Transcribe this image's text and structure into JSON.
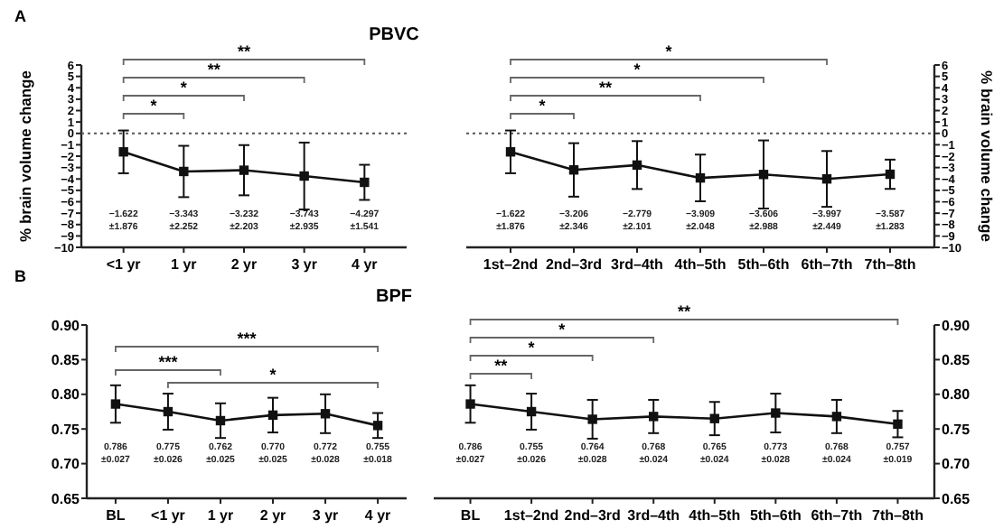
{
  "chart_data": [
    {
      "type": "line",
      "title": "PBVC",
      "ylabel": "% brain volume change",
      "categories": [
        "<1 yr",
        "1 yr",
        "2 yr",
        "3 yr",
        "4 yr"
      ],
      "ylim": [
        -10,
        6
      ],
      "yticks": [
        -10,
        -9,
        -8,
        -7,
        -6,
        -5,
        -4,
        -3,
        -2,
        -1,
        0,
        1,
        2,
        3,
        4,
        5,
        6
      ],
      "marker": "square",
      "line_style": "solid",
      "ref_lines": [
        {
          "axis": "y",
          "value": 0,
          "line_style": "dotted",
          "color": "#555555"
        }
      ],
      "series": [
        {
          "color": "#111111",
          "values": [
            -1.622,
            -3.343,
            -3.232,
            -3.743,
            -4.297
          ],
          "errors": [
            1.876,
            2.252,
            2.203,
            2.935,
            1.541
          ]
        }
      ],
      "annotations": [
        "A",
        "*",
        "*",
        "**",
        "**",
        "−1.622 ±1.876",
        "−3.343 ±2.252",
        "−3.232 ±2.203",
        "−3.743 ±2.935",
        "−4.297 ±1.541"
      ]
    },
    {
      "type": "line",
      "y2label": "% brain volume change",
      "categories": [
        "1st–2nd",
        "2nd–3rd",
        "3rd–4th",
        "4th–5th",
        "5th–6th",
        "6th–7th",
        "7th–8th"
      ],
      "y2lim": [
        -10,
        6
      ],
      "y2ticks": [
        -10,
        -9,
        -8,
        -7,
        -6,
        -5,
        -4,
        -3,
        -2,
        -1,
        0,
        1,
        2,
        3,
        4,
        5,
        6
      ],
      "marker": "square",
      "line_style": "solid",
      "ref_lines": [
        {
          "axis": "y2",
          "value": 0,
          "line_style": "dotted",
          "color": "#555555"
        }
      ],
      "series": [
        {
          "axis": "y2",
          "color": "#111111",
          "values": [
            -1.622,
            -3.206,
            -2.779,
            -3.909,
            -3.606,
            -3.997,
            -3.587
          ],
          "errors": [
            1.876,
            2.346,
            2.101,
            2.048,
            2.988,
            2.449,
            1.283
          ]
        }
      ],
      "annotations": [
        "*",
        "**",
        "*",
        "*",
        "−1.622 ±1.876",
        "−3.206 ±2.346",
        "−2.779 ±2.101",
        "−3.909 ±2.048",
        "−3.606 ±2.988",
        "−3.997 ±2.449",
        "−3.587 ±1.283"
      ]
    },
    {
      "type": "line",
      "title": "BPF",
      "categories": [
        "BL",
        "<1 yr",
        "1 yr",
        "2 yr",
        "3 yr",
        "4 yr"
      ],
      "ylim": [
        0.65,
        0.9
      ],
      "yticks": [
        {
          "value": 0.65,
          "label": "0.65"
        },
        {
          "value": 0.7,
          "label": "0.70"
        },
        {
          "value": 0.75,
          "label": "0.75"
        },
        {
          "value": 0.8,
          "label": "0.80"
        },
        {
          "value": 0.85,
          "label": "0.85"
        },
        {
          "value": 0.9,
          "label": "0.90"
        }
      ],
      "marker": "square",
      "line_style": "solid",
      "series": [
        {
          "color": "#111111",
          "values": [
            0.786,
            0.775,
            0.762,
            0.77,
            0.772,
            0.755
          ],
          "errors": [
            0.027,
            0.026,
            0.025,
            0.025,
            0.028,
            0.018
          ]
        }
      ],
      "annotations": [
        "B",
        "***",
        "*",
        "***",
        "0.786 ±0.027",
        "0.775 ±0.026",
        "0.762 ±0.025",
        "0.770 ±0.025",
        "0.772 ±0.028",
        "0.755 ±0.018"
      ]
    },
    {
      "type": "line",
      "categories": [
        "BL",
        "1st–2nd",
        "2nd–3rd",
        "3rd–4th",
        "4th–5th",
        "5th–6th",
        "6th–7th",
        "7th–8th"
      ],
      "y2lim": [
        0.65,
        0.9
      ],
      "y2ticks": [
        {
          "value": 0.65,
          "label": "0.65"
        },
        {
          "value": 0.7,
          "label": "0.70"
        },
        {
          "value": 0.75,
          "label": "0.75"
        },
        {
          "value": 0.8,
          "label": "0.80"
        },
        {
          "value": 0.85,
          "label": "0.85"
        },
        {
          "value": 0.9,
          "label": "0.90"
        }
      ],
      "marker": "square",
      "line_style": "solid",
      "series": [
        {
          "axis": "y2",
          "color": "#111111",
          "values": [
            0.786,
            0.775,
            0.764,
            0.768,
            0.765,
            0.773,
            0.768,
            0.757
          ],
          "errors": [
            0.027,
            0.026,
            0.028,
            0.024,
            0.024,
            0.028,
            0.024,
            0.019
          ]
        }
      ],
      "annotations": [
        "**",
        "*",
        "*",
        "**",
        "0.786 ±0.027",
        "0.755 ±0.026",
        "0.764 ±0.028",
        "0.768 ±0.024",
        "0.765 ±0.024",
        "0.773 ±0.028",
        "0.768 ±0.024",
        "0.757 ±0.019"
      ]
    }
  ]
}
